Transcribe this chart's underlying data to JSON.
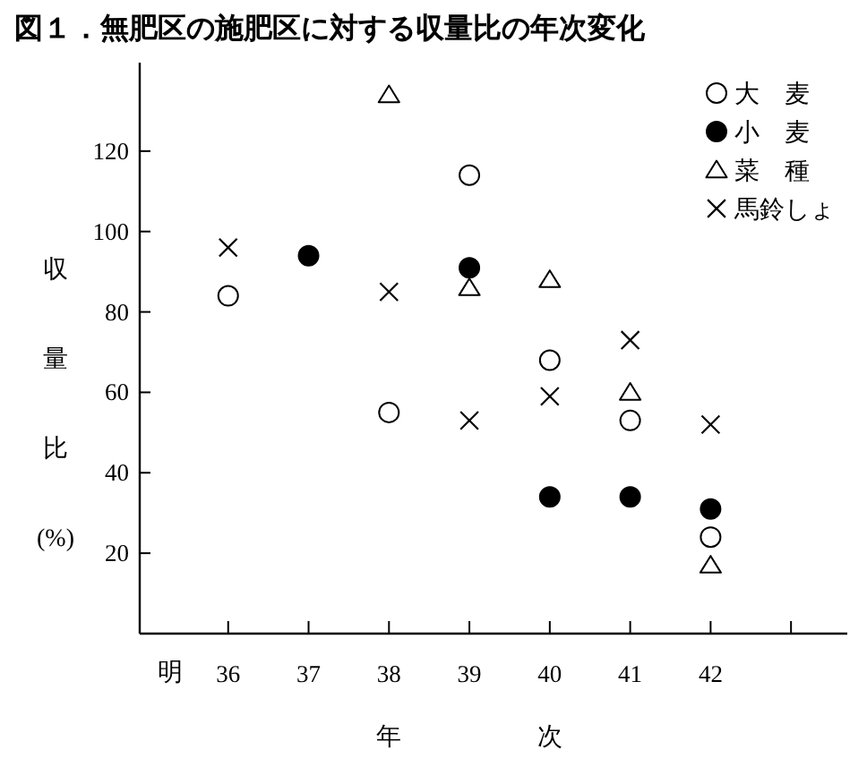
{
  "chart_data": {
    "type": "scatter",
    "title": "図１．無肥区の施肥区に対する収量比の年次変化",
    "xlabel": "年次",
    "ylabel": "収量比(%)",
    "x": [
      36,
      37,
      38,
      39,
      40,
      41,
      42
    ],
    "series": [
      {
        "name": "大　麦",
        "color": "#ffffff",
        "marker": "circle",
        "values": [
          84,
          null,
          55,
          114,
          68,
          53,
          24
        ]
      },
      {
        "name": "小　麦",
        "color": "#000000",
        "marker": "circle",
        "values": [
          null,
          94,
          null,
          91,
          34,
          34,
          31
        ]
      },
      {
        "name": "菜　種",
        "color": "#000000",
        "marker": "triangle",
        "values": [
          null,
          null,
          134,
          86,
          88,
          60,
          17
        ]
      },
      {
        "name": "馬鈴しょ",
        "color": "#000000",
        "marker": "cross",
        "values": [
          96,
          null,
          85,
          53,
          59,
          73,
          52
        ]
      }
    ],
    "xlim": [
      34.9,
      43.7
    ],
    "ylim": [
      0,
      142
    ],
    "xticks": [
      36,
      37,
      38,
      39,
      40,
      41,
      42,
      {
        "value": 43,
        "label": null
      }
    ],
    "yticks": [
      20,
      40,
      60,
      80,
      100,
      120
    ],
    "legend": "top right",
    "annotations": [
      "明"
    ]
  }
}
